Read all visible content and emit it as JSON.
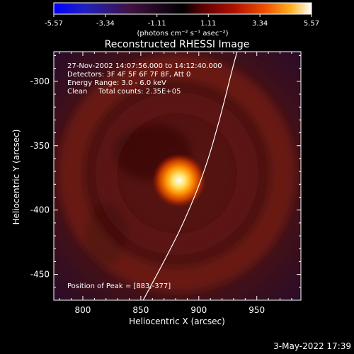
{
  "colorbar": {
    "ticks": [
      "-5.57",
      "-3.34",
      "-1.11",
      "1.11",
      "3.34",
      "5.57"
    ],
    "range": [
      -5.57,
      5.57
    ],
    "units_label": "(photons cm⁻² s⁻¹ asec⁻²)"
  },
  "chart_data": {
    "type": "heatmap",
    "title": "Reconstructed RHESSI Image",
    "xlabel": "Heliocentric X (arcsec)",
    "ylabel": "Heliocentric Y (arcsec)",
    "xlim": [
      775,
      988
    ],
    "ylim": [
      -470,
      -277
    ],
    "xticks": [
      800,
      850,
      900,
      950
    ],
    "yticks": [
      -300,
      -350,
      -400,
      -450
    ],
    "info_lines": [
      "27-Nov-2002 14:07:56.000 to 14:12:40.000",
      "Detectors: 3F 4F 5F 6F 7F 8F, Att 0",
      "Energy Range: 3.0 - 6.0 keV",
      "Clean     Total counts: 2.35E+05"
    ],
    "peak_label": "Position of Peak = [883,-377]",
    "peak": {
      "x": 883,
      "y": -377
    },
    "limb_points": [
      [
        852,
        -470
      ],
      [
        870,
        -440
      ],
      [
        888,
        -408
      ],
      [
        905,
        -370
      ],
      [
        918,
        -330
      ],
      [
        929,
        -290
      ],
      [
        933,
        -277
      ]
    ],
    "ring": {
      "cx": 895,
      "cy": -372,
      "radius_arcsec": 92
    },
    "colormap": [
      "#000000",
      "#3a0000",
      "#7a0a00",
      "#a01a00",
      "#c83000",
      "#f06000",
      "#ffa020",
      "#ffe070",
      "#ffffff"
    ]
  },
  "footer": {
    "date": "3-May-2022 17:39"
  }
}
